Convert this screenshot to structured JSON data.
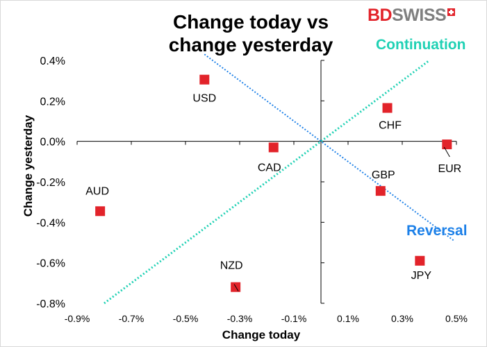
{
  "chart_data": {
    "type": "scatter",
    "title": "Change today vs change yesterday",
    "xlabel": "Change today",
    "ylabel": "Change yesterday",
    "xlim": [
      -0.9,
      0.5
    ],
    "ylim": [
      -0.8,
      0.4
    ],
    "x_ticks": [
      "-0.9%",
      "-0.7%",
      "-0.5%",
      "-0.3%",
      "-0.1%",
      "0.1%",
      "0.3%",
      "0.5%"
    ],
    "y_ticks": [
      "0.4%",
      "0.2%",
      "0.0%",
      "-0.2%",
      "-0.4%",
      "-0.6%",
      "-0.8%"
    ],
    "points": [
      {
        "label": "USD",
        "x": -0.43,
        "y": 0.305
      },
      {
        "label": "CHF",
        "x": 0.245,
        "y": 0.165
      },
      {
        "label": "EUR",
        "x": 0.465,
        "y": -0.015
      },
      {
        "label": "CAD",
        "x": -0.175,
        "y": -0.03
      },
      {
        "label": "GBP",
        "x": 0.22,
        "y": -0.245
      },
      {
        "label": "AUD",
        "x": -0.815,
        "y": -0.345
      },
      {
        "label": "JPY",
        "x": 0.365,
        "y": -0.59
      },
      {
        "label": "NZD",
        "x": -0.315,
        "y": -0.72
      }
    ],
    "annotations": [
      "Continuation",
      "Reversal"
    ],
    "colors": {
      "marker": "#e2232a",
      "continuation": "#1fd1b4",
      "reversal": "#1c80e8"
    }
  },
  "brand": {
    "part1": "BD",
    "part2": "SWISS"
  }
}
